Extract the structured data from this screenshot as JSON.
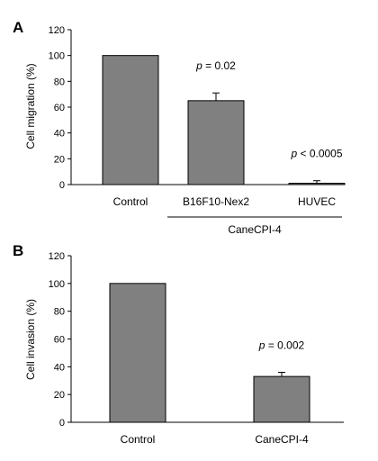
{
  "chart_data": [
    {
      "type": "bar",
      "panel": "A",
      "ylabel": "Cell migration (%)",
      "ylim": [
        0,
        120
      ],
      "yticks": [
        0,
        20,
        40,
        60,
        80,
        100,
        120
      ],
      "categories": [
        "Control",
        "B16F10-Nex2",
        "HUVEC"
      ],
      "values": [
        100,
        65,
        1
      ],
      "errors": [
        0,
        6,
        2
      ],
      "annotations": [
        "",
        "p = 0.02",
        "p < 0.0005"
      ],
      "group_label": "CaneCPI-4",
      "bar_color": "#808080"
    },
    {
      "type": "bar",
      "panel": "B",
      "ylabel": "Cell invasion (%)",
      "ylim": [
        0,
        120
      ],
      "yticks": [
        0,
        20,
        40,
        60,
        80,
        100,
        120
      ],
      "categories": [
        "Control",
        "CaneCPI-4"
      ],
      "values": [
        100,
        33
      ],
      "errors": [
        0,
        3
      ],
      "annotations": [
        "",
        "p = 0.002"
      ],
      "bar_color": "#808080"
    }
  ]
}
